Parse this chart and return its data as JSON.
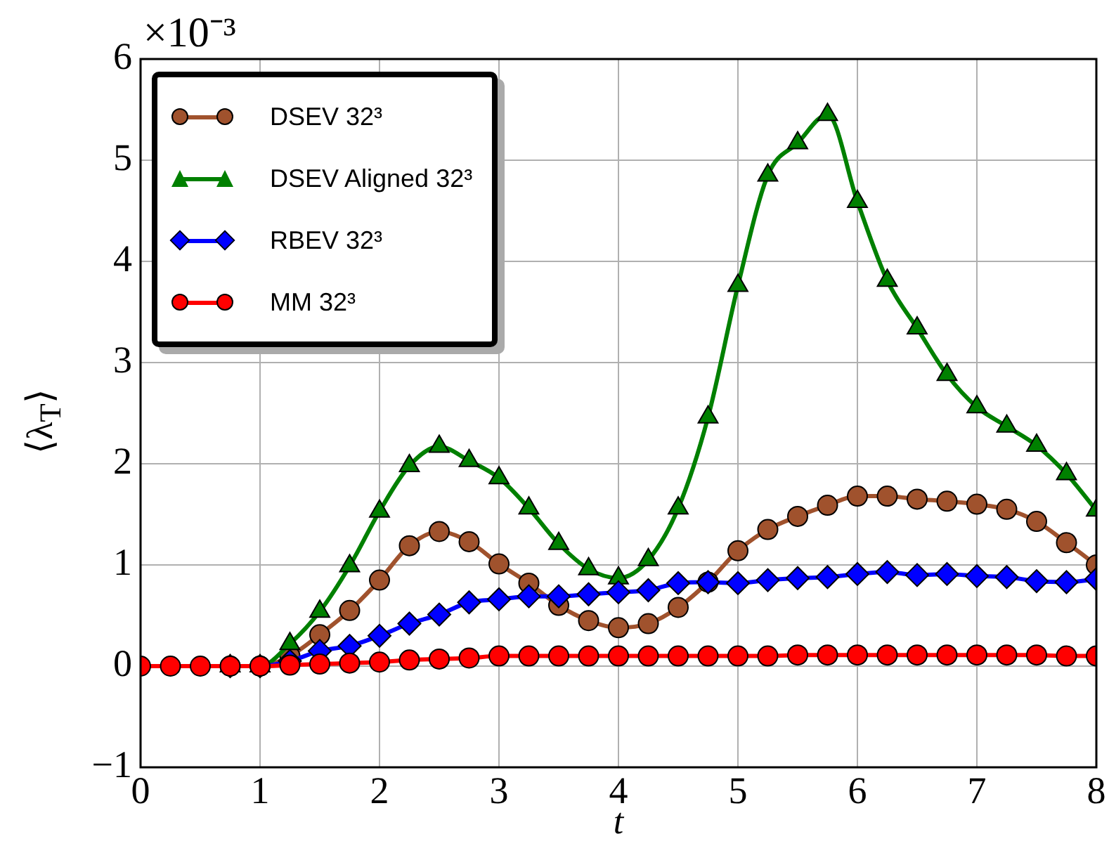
{
  "chart_data": {
    "type": "line",
    "xlabel": "t",
    "ylabel": "⟨λ$_{T}$⟩",
    "annotations": [
      "×10⁻³"
    ],
    "x": [
      0,
      0.25,
      0.5,
      0.75,
      1,
      1.25,
      1.5,
      1.75,
      2,
      2.25,
      2.5,
      2.75,
      3,
      3.25,
      3.5,
      3.75,
      4,
      4.25,
      4.5,
      4.75,
      5,
      5.25,
      5.5,
      5.75,
      6,
      6.25,
      6.5,
      6.75,
      7,
      7.25,
      7.5,
      7.75,
      8
    ],
    "series": [
      {
        "name": "DSEV 32³",
        "color": "#a0522d",
        "marker": "circle",
        "values": [
          null,
          null,
          null,
          0,
          0,
          0.1,
          0.31,
          0.55,
          0.85,
          1.19,
          1.33,
          1.23,
          1.01,
          0.82,
          0.6,
          0.45,
          0.38,
          0.42,
          0.58,
          0.83,
          1.14,
          1.35,
          1.48,
          1.59,
          1.68,
          1.68,
          1.65,
          1.63,
          1.6,
          1.55,
          1.43,
          1.22,
          1.0
        ]
      },
      {
        "name": "DSEV Aligned 32³",
        "color": "#008000",
        "marker": "triangle",
        "values": [
          null,
          null,
          null,
          0,
          0,
          0.22,
          0.54,
          0.99,
          1.53,
          1.98,
          2.17,
          2.03,
          1.86,
          1.56,
          1.21,
          0.96,
          0.87,
          1.05,
          1.56,
          2.46,
          3.76,
          4.85,
          5.17,
          5.45,
          4.59,
          3.81,
          3.34,
          2.88,
          2.56,
          2.37,
          2.18,
          1.9,
          1.54
        ]
      },
      {
        "name": "RBEV 32³",
        "color": "#0000ff",
        "marker": "diamond",
        "values": [
          null,
          null,
          null,
          0,
          0,
          0.05,
          0.15,
          0.2,
          0.3,
          0.42,
          0.51,
          0.63,
          0.66,
          0.69,
          0.69,
          0.71,
          0.73,
          0.75,
          0.82,
          0.83,
          0.82,
          0.85,
          0.87,
          0.88,
          0.91,
          0.93,
          0.9,
          0.91,
          0.89,
          0.88,
          0.84,
          0.83,
          0.86
        ]
      },
      {
        "name": "MM 32³",
        "color": "#ff0000",
        "marker": "circle",
        "values": [
          0,
          0,
          0,
          0,
          0,
          0.01,
          0.02,
          0.03,
          0.04,
          0.06,
          0.07,
          0.08,
          0.1,
          0.1,
          0.1,
          0.1,
          0.1,
          0.1,
          0.1,
          0.1,
          0.1,
          0.1,
          0.11,
          0.11,
          0.11,
          0.11,
          0.11,
          0.11,
          0.11,
          0.11,
          0.11,
          0.1,
          0.1
        ]
      }
    ],
    "xlim": [
      0,
      8
    ],
    "xticks": [
      0,
      1,
      2,
      3,
      4,
      5,
      6,
      7,
      8
    ],
    "ylim": [
      -1,
      6
    ],
    "yticks": [
      -1,
      0,
      1,
      2,
      3,
      4,
      5,
      6
    ],
    "grid": true,
    "legend": "top left",
    "line_style": "solid"
  }
}
